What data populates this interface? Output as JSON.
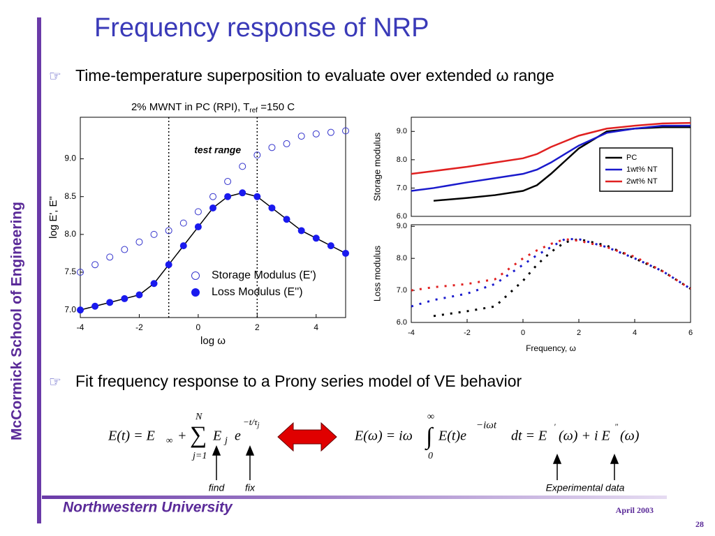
{
  "slide": {
    "title": "Frequency response of NRP",
    "bullet1": "Time-temperature superposition to evaluate over extended ω range",
    "bullet2": "Fit frequency response to a Prony series model of VE behavior",
    "sidebar": "McCormick School of Engineering",
    "footer": "Northwestern University",
    "date": "April 2003",
    "page": "28",
    "find": "find",
    "fix": "fix",
    "experimental": "Experimental data",
    "eq1": {
      "lhs": "E(t) = E",
      "inf": "∞",
      "plus": "+",
      "top": "N",
      "sigma": "∑",
      "bottom": "j=1",
      "E": "E",
      "j": "j",
      "e": "e",
      "exp": "−t/τ",
      "expsub": "j"
    },
    "eq2": {
      "lhs": "E(ω) = iω",
      "top": "∞",
      "int": "∫",
      "bottom": "0",
      "mid": "E(t)e",
      "exp": "−iωt",
      "rest": "dt = E",
      "p1": "'",
      "mid2": "(ω) + i E",
      "p2": "\"",
      "end": "(ω)"
    }
  },
  "chart_data": [
    {
      "type": "scatter",
      "title": "2% MWNT in PC (RPI), T",
      "title_sub": "ref",
      "title_end": " =150 C",
      "xlabel": "log ω",
      "ylabel": "log E', E\"",
      "annotation": "test range",
      "test_range": [
        -1,
        2
      ],
      "xlim": [
        -4,
        5
      ],
      "ylim": [
        6.9,
        9.55
      ],
      "xticks": [
        -4,
        -2,
        0,
        2,
        4
      ],
      "yticks": [
        {
          "value": 7,
          "label": "7.0"
        },
        7.5,
        {
          "value": 8,
          "label": "8.0"
        },
        8.5,
        {
          "value": 9,
          "label": "9.0"
        }
      ],
      "series": [
        {
          "name": "Storage Modulus (E')",
          "color": "#3333cc",
          "hollow": true,
          "x": [
            -4,
            -3.5,
            -3,
            -2.5,
            -2,
            -1.5,
            -1,
            -0.5,
            0,
            0.5,
            1,
            1.5,
            2,
            2.5,
            3,
            3.5,
            4,
            4.5,
            5
          ],
          "values": [
            7.5,
            7.6,
            7.7,
            7.8,
            7.9,
            8.0,
            8.05,
            8.15,
            8.3,
            8.5,
            8.7,
            8.9,
            9.05,
            9.15,
            9.2,
            9.3,
            9.33,
            9.35,
            9.37
          ]
        },
        {
          "name": "Loss Modulus (E'')",
          "color": "#1a1aee",
          "hollow": false,
          "x": [
            -4,
            -3.5,
            -3,
            -2.5,
            -2,
            -1.5,
            -1,
            -0.5,
            0,
            0.5,
            1,
            1.5,
            2,
            2.5,
            3,
            3.5,
            4,
            4.5,
            5
          ],
          "values": [
            7.0,
            7.05,
            7.1,
            7.15,
            7.2,
            7.35,
            7.6,
            7.85,
            8.1,
            8.35,
            8.5,
            8.55,
            8.5,
            8.35,
            8.2,
            8.05,
            7.95,
            7.85,
            7.75
          ]
        }
      ]
    },
    {
      "type": "line",
      "ylabel": "Storage modulus",
      "xlim": [
        -4,
        6
      ],
      "ylim": [
        6,
        9.5
      ],
      "yticks": [
        {
          "value": 6,
          "label": "6.0"
        },
        {
          "value": 7,
          "label": "7.0"
        },
        {
          "value": 8,
          "label": "8.0"
        },
        {
          "value": 9,
          "label": "9.0"
        }
      ],
      "dashed": false,
      "legend": "upper right",
      "x": [
        -4,
        -3.2,
        -2,
        -1,
        0,
        0.5,
        1,
        1.5,
        2,
        3,
        4,
        5,
        6
      ],
      "series": [
        {
          "name": "PC",
          "color": "#000000",
          "values": [
            null,
            6.55,
            6.65,
            6.75,
            6.9,
            7.1,
            7.5,
            7.95,
            8.4,
            9.0,
            9.1,
            9.15,
            9.15
          ]
        },
        {
          "name": "1wt% NT",
          "color": "#1a1acc",
          "values": [
            6.9,
            7.0,
            7.2,
            7.35,
            7.5,
            7.65,
            7.9,
            8.2,
            8.5,
            8.95,
            9.1,
            9.2,
            9.2
          ]
        },
        {
          "name": "2wt% NT",
          "color": "#e02020",
          "values": [
            7.5,
            7.6,
            7.75,
            7.9,
            8.05,
            8.2,
            8.45,
            8.65,
            8.85,
            9.1,
            9.2,
            9.28,
            9.3
          ]
        }
      ]
    },
    {
      "type": "line",
      "ylabel": "Loss modulus",
      "xlabel": "Frequency,  ω",
      "xlim": [
        -4,
        6
      ],
      "ylim": [
        6,
        9.05
      ],
      "xticks": [
        -4,
        -2,
        0,
        2,
        4,
        6
      ],
      "yticks": [
        {
          "value": 6,
          "label": "6.0"
        },
        {
          "value": 7,
          "label": "7.0"
        },
        {
          "value": 8,
          "label": "8.0"
        },
        {
          "value": 9,
          "label": "9.0"
        }
      ],
      "dashed": true,
      "x": [
        -4,
        -3.2,
        -2,
        -1,
        0,
        0.5,
        1,
        1.5,
        2,
        3,
        4,
        5,
        6
      ],
      "series": [
        {
          "name": "PC",
          "color": "#000000",
          "values": [
            null,
            6.2,
            6.35,
            6.5,
            7.3,
            7.8,
            8.2,
            8.5,
            8.6,
            8.4,
            8.0,
            7.6,
            7.05
          ]
        },
        {
          "name": "1wt% NT",
          "color": "#1a1acc",
          "values": [
            6.5,
            6.7,
            6.9,
            7.2,
            7.8,
            8.1,
            8.35,
            8.6,
            8.6,
            8.35,
            8.0,
            7.6,
            7.05
          ]
        },
        {
          "name": "2wt% NT",
          "color": "#e02020",
          "values": [
            7.0,
            7.1,
            7.2,
            7.35,
            8.0,
            8.25,
            8.45,
            8.6,
            8.55,
            8.35,
            8.05,
            7.6,
            7.05
          ]
        }
      ]
    }
  ]
}
